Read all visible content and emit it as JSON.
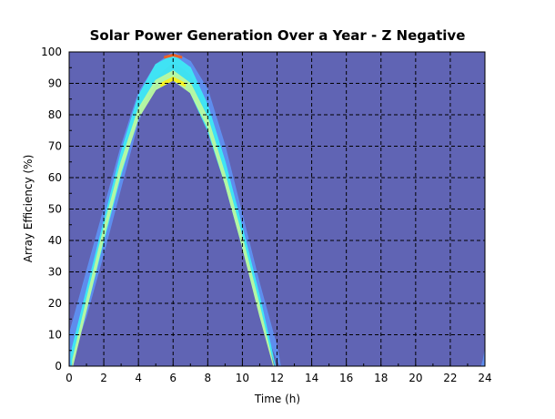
{
  "chart_data": {
    "type": "heatmap",
    "title": "Solar Power Generation Over a Year - Z Negative",
    "xlabel": "Time (h)",
    "ylabel": "Array Efficiency (%)",
    "xlim": [
      0,
      24
    ],
    "ylim": [
      0,
      100
    ],
    "x_ticks": [
      0,
      2,
      4,
      6,
      8,
      10,
      12,
      14,
      16,
      18,
      20,
      22,
      24
    ],
    "y_ticks": [
      0,
      10,
      20,
      30,
      40,
      50,
      60,
      70,
      80,
      90,
      100
    ],
    "grid": true,
    "background_color": "#6064b4",
    "bands": [
      {
        "level": "low",
        "color": "#5e8ff0",
        "x": [
          0.0,
          1.0,
          2.0,
          3.0,
          4.0,
          5.0,
          6.0,
          7.0,
          8.0,
          9.0,
          10.0,
          11.0,
          12.0,
          12.2
        ],
        "y_min": [
          0,
          16,
          36,
          57,
          78,
          92,
          97,
          93,
          80,
          60,
          38,
          16,
          2,
          0
        ],
        "y_max": [
          10,
          30,
          50,
          70,
          87,
          96,
          100,
          97,
          88,
          70,
          48,
          26,
          6,
          0
        ]
      },
      {
        "level": "mid",
        "color": "#3ee8f4",
        "x": [
          0.1,
          1.0,
          2.0,
          3.0,
          4.0,
          5.0,
          6.0,
          7.0,
          8.0,
          9.0,
          10.0,
          11.0,
          11.9
        ],
        "y_min": [
          0,
          18,
          40,
          61,
          80,
          90,
          92,
          87,
          75,
          58,
          38,
          17,
          0
        ],
        "y_max": [
          4,
          24,
          46,
          68,
          86,
          96,
          99,
          95,
          83,
          65,
          44,
          22,
          0
        ]
      },
      {
        "level": "high",
        "color": "#b8f8a0",
        "x": [
          0.2,
          1.0,
          2.0,
          3.0,
          4.0,
          5.0,
          6.0,
          7.0,
          8.0,
          9.0,
          10.0,
          11.0,
          11.8
        ],
        "y_min": [
          0,
          18,
          41,
          62,
          79,
          88,
          91,
          87,
          76,
          58,
          38,
          16,
          0
        ],
        "y_max": [
          2,
          21,
          44,
          65,
          82,
          91,
          94,
          90,
          79,
          61,
          41,
          19,
          0
        ]
      },
      {
        "level": "peak",
        "color": "#f8f020",
        "x": [
          5.3,
          6.0,
          6.7
        ],
        "y_min": [
          89,
          91,
          89
        ],
        "y_max": [
          90,
          92,
          90
        ]
      },
      {
        "level": "peak-top",
        "color": "#f06020",
        "x": [
          5.5,
          6.0,
          6.5
        ],
        "y_min": [
          98,
          98.7,
          98
        ],
        "y_max": [
          98.6,
          99.3,
          98.6
        ]
      },
      {
        "level": "low-tail",
        "color": "#5e8ff0",
        "x": [
          23.8,
          23.9,
          24.0
        ],
        "y_min": [
          0,
          0,
          0
        ],
        "y_max": [
          0,
          2,
          5
        ]
      }
    ]
  }
}
